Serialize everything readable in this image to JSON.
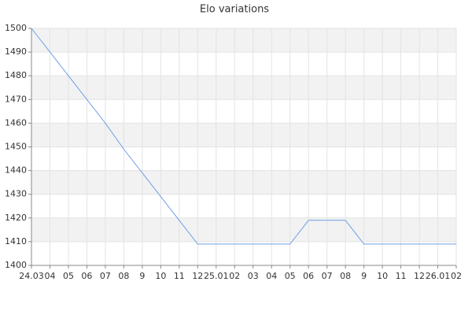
{
  "chart_data": {
    "type": "line",
    "title": "Elo variations",
    "categories": [
      "24.03",
      "04",
      "05",
      "06",
      "07",
      "08",
      "9",
      "10",
      "11",
      "12",
      "25.01",
      "02",
      "03",
      "04",
      "05",
      "06",
      "07",
      "08",
      "9",
      "10",
      "11",
      "12",
      "26.01",
      "02"
    ],
    "series": [
      {
        "name": "Elo",
        "color": "#6f9ee6",
        "values": [
          1500,
          1490,
          1480,
          1470,
          1460,
          1449,
          1439,
          1429,
          1419,
          1409,
          1409,
          1409,
          1409,
          1409,
          1409,
          1419,
          1419,
          1419,
          1409,
          1409,
          1409,
          1409,
          1409,
          1409
        ]
      }
    ],
    "ylim": [
      1400,
      1500
    ],
    "yticks": [
      1400,
      1410,
      1420,
      1430,
      1440,
      1450,
      1460,
      1470,
      1480,
      1490,
      1500
    ],
    "grid": true,
    "alternate_bands": true
  }
}
